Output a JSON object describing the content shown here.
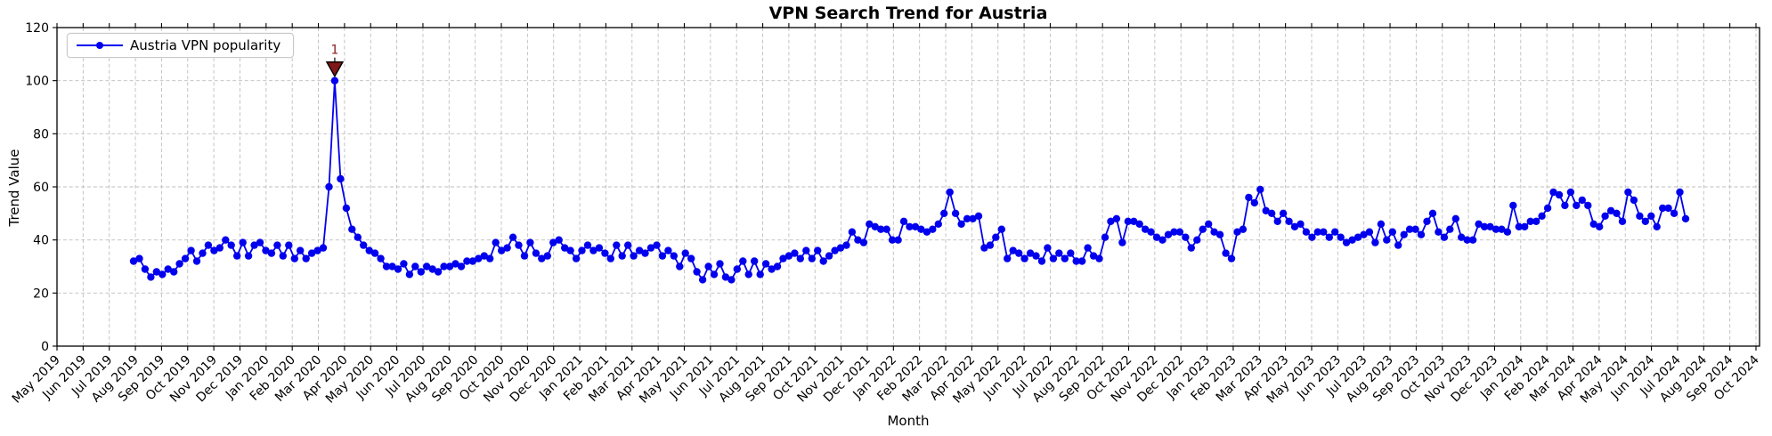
{
  "chart_data": {
    "type": "line",
    "title": "VPN Search Trend for Austria",
    "xlabel": "Month",
    "ylabel": "Trend Value",
    "ylim": [
      0,
      120
    ],
    "yticks": [
      0,
      20,
      40,
      60,
      80,
      100,
      120
    ],
    "grid": true,
    "grid_style": "dashed",
    "legend_position": "upper left",
    "x_tick_labels": [
      "May 2019",
      "Jun 2019",
      "Jul 2019",
      "Aug 2019",
      "Sep 2019",
      "Oct 2019",
      "Nov 2019",
      "Dec 2019",
      "Jan 2020",
      "Feb 2020",
      "Mar 2020",
      "Apr 2020",
      "May 2020",
      "Jun 2020",
      "Jul 2020",
      "Aug 2020",
      "Sep 2020",
      "Oct 2020",
      "Nov 2020",
      "Dec 2020",
      "Jan 2021",
      "Feb 2021",
      "Mar 2021",
      "Apr 2021",
      "May 2021",
      "Jun 2021",
      "Jul 2021",
      "Aug 2021",
      "Sep 2021",
      "Oct 2021",
      "Nov 2021",
      "Dec 2021",
      "Jan 2022",
      "Feb 2022",
      "Mar 2022",
      "Apr 2022",
      "May 2022",
      "Jun 2022",
      "Jul 2022",
      "Aug 2022",
      "Sep 2022",
      "Oct 2022",
      "Nov 2022",
      "Dec 2022",
      "Jan 2023",
      "Feb 2023",
      "Mar 2023",
      "Apr 2023",
      "May 2023",
      "Jun 2023",
      "Jul 2023",
      "Aug 2023",
      "Sep 2023",
      "Oct 2023",
      "Nov 2023",
      "Dec 2023",
      "Jan 2024",
      "Feb 2024",
      "Mar 2024",
      "Apr 2024",
      "May 2024",
      "Jun 2024",
      "Jul 2024",
      "Aug 2024",
      "Sep 2024",
      "Oct 2024"
    ],
    "series": [
      {
        "name": "Austria VPN popularity",
        "color": "#0000ee",
        "marker": "o",
        "x_start": "2019-08",
        "x_end": "2024-08",
        "cadence": "approximately weekly, points evenly spaced",
        "values": [
          32,
          33,
          29,
          26,
          28,
          27,
          29,
          28,
          31,
          33,
          36,
          32,
          35,
          38,
          36,
          37,
          40,
          38,
          34,
          39,
          34,
          38,
          39,
          36,
          35,
          38,
          34,
          38,
          33,
          36,
          33,
          35,
          36,
          37,
          60,
          100,
          63,
          52,
          44,
          41,
          38,
          36,
          35,
          33,
          30,
          30,
          29,
          31,
          27,
          30,
          28,
          30,
          29,
          28,
          30,
          30,
          31,
          30,
          32,
          32,
          33,
          34,
          33,
          39,
          36,
          37,
          41,
          38,
          34,
          39,
          35,
          33,
          34,
          39,
          40,
          37,
          36,
          33,
          36,
          38,
          36,
          37,
          35,
          33,
          38,
          34,
          38,
          34,
          36,
          35,
          37,
          38,
          34,
          36,
          34,
          30,
          35,
          33,
          28,
          25,
          30,
          27,
          31,
          26,
          25,
          29,
          32,
          27,
          32,
          27,
          31,
          29,
          30,
          33,
          34,
          35,
          33,
          36,
          33,
          36,
          32,
          34,
          36,
          37,
          38,
          43,
          40,
          39,
          46,
          45,
          44,
          44,
          40,
          40,
          47,
          45,
          45,
          44,
          43,
          44,
          46,
          50,
          58,
          50,
          46,
          48,
          48,
          49,
          37,
          38,
          41,
          44,
          33,
          36,
          35,
          33,
          35,
          34,
          32,
          37,
          33,
          35,
          33,
          35,
          32,
          32,
          37,
          34,
          33,
          41,
          47,
          48,
          39,
          47,
          47,
          46,
          44,
          43,
          41,
          40,
          42,
          43,
          43,
          41,
          37,
          40,
          44,
          46,
          43,
          42,
          35,
          33,
          43,
          44,
          56,
          54,
          59,
          51,
          50,
          47,
          50,
          47,
          45,
          46,
          43,
          41,
          43,
          43,
          41,
          43,
          41,
          39,
          40,
          41,
          42,
          43,
          39,
          46,
          40,
          43,
          38,
          42,
          44,
          44,
          42,
          47,
          50,
          43,
          41,
          44,
          48,
          41,
          40,
          40,
          46,
          45,
          45,
          44,
          44,
          43,
          53,
          45,
          45,
          47,
          47,
          49,
          52,
          58,
          57,
          53,
          58,
          53,
          55,
          53,
          46,
          45,
          49,
          51,
          50,
          47,
          58,
          55,
          49,
          47,
          49,
          45,
          52,
          52,
          50,
          58,
          48
        ]
      }
    ],
    "peak_annotation": {
      "label": "1",
      "value": 100,
      "approx_date": "2020-04",
      "marker": "triangle-down",
      "fill_color": "#7f1818",
      "text_color": "#8b1a1a",
      "edge_color": "#000000"
    }
  }
}
